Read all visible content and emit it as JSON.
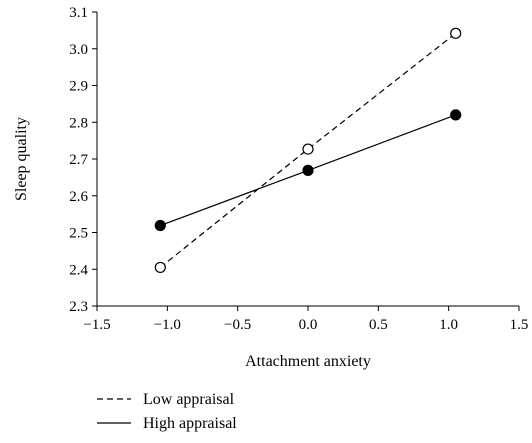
{
  "chart_data": {
    "type": "line",
    "xlabel": "Attachment anxiety",
    "ylabel": "Sleep quality",
    "xlim": [
      -1.5,
      1.5
    ],
    "ylim": [
      2.3,
      3.1
    ],
    "x_ticks": [
      -1.5,
      -1.0,
      -0.5,
      0.0,
      0.5,
      1.0,
      1.5
    ],
    "x_tick_labels": [
      "−1.5",
      "−1.0",
      "−0.5",
      "0.0",
      "0.5",
      "1.0",
      "1.5"
    ],
    "y_ticks": [
      2.3,
      2.4,
      2.5,
      2.6,
      2.7,
      2.8,
      2.9,
      3.0,
      3.1
    ],
    "y_tick_labels": [
      "2.3",
      "2.4",
      "2.5",
      "2.6",
      "2.7",
      "2.8",
      "2.9",
      "3.0",
      "3.1"
    ],
    "grid": false,
    "legend_position": "bottom-left, below axes",
    "series": [
      {
        "name": "Low appraisal",
        "line_style": "dashed",
        "marker": "open-circle",
        "x": [
          -1.05,
          0.0,
          1.05
        ],
        "y": [
          2.405,
          2.727,
          3.042
        ]
      },
      {
        "name": "High appraisal",
        "line_style": "solid",
        "marker": "filled-circle",
        "x": [
          -1.05,
          0.0,
          1.05
        ],
        "y": [
          2.519,
          2.669,
          2.82
        ]
      }
    ]
  }
}
